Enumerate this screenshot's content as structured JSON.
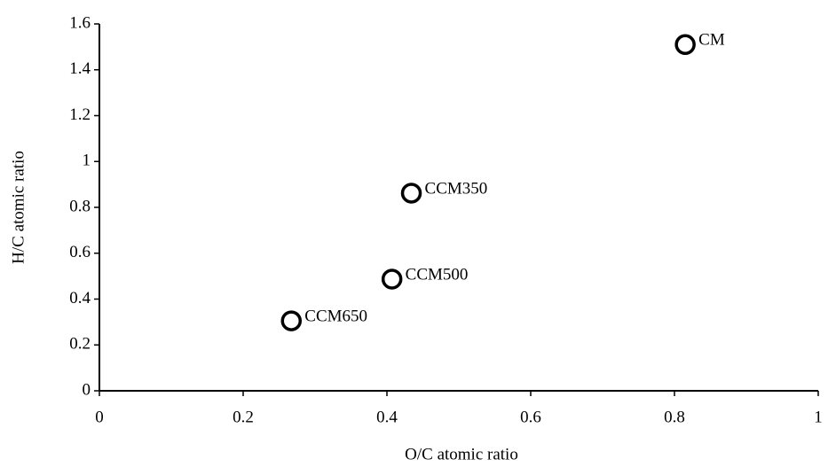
{
  "chart_data": {
    "type": "scatter",
    "xlabel": "O/C atomic ratio",
    "ylabel": "H/C atomic ratio",
    "x": [
      0.815,
      0.434,
      0.407,
      0.267
    ],
    "values": [
      1.51,
      0.862,
      0.487,
      0.305
    ],
    "point_labels": [
      "CM",
      "CCM350",
      "CCM500",
      "CCM650"
    ],
    "color": "#000000",
    "xlim": [
      0,
      1
    ],
    "xticks": [
      0,
      0.2,
      0.4,
      0.6,
      0.8,
      1
    ],
    "ylim": [
      0,
      1.6
    ],
    "yticks": [
      0,
      0.2,
      0.4,
      0.6,
      0.8,
      1,
      1.2,
      1.4,
      1.6
    ],
    "grid": false
  }
}
